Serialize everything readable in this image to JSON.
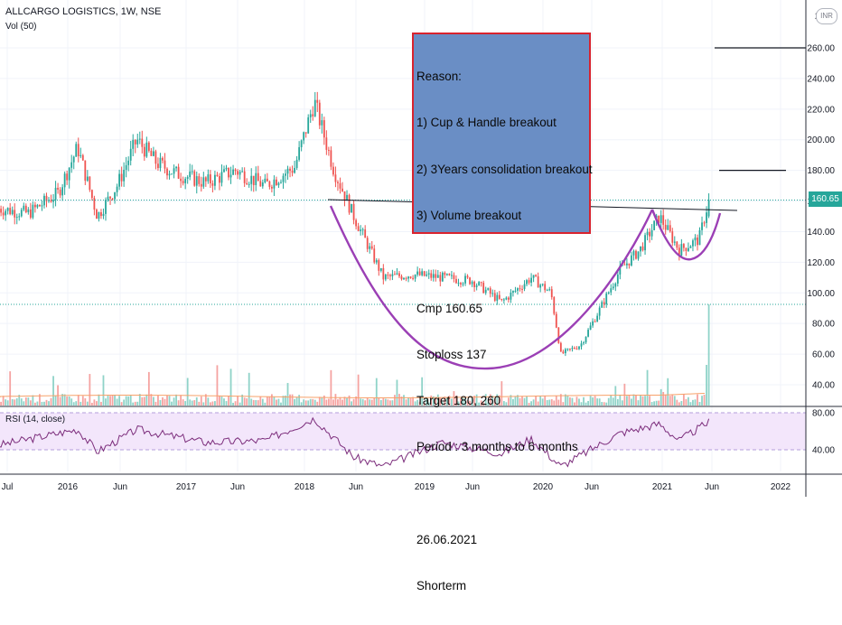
{
  "header": {
    "symbol_line": "ALLCARGO LOGISTICS, 1W, NSE",
    "vol_label": "Vol (50)",
    "rsi_label": "RSI (14, close)",
    "currency_badge": "INR"
  },
  "annotation": {
    "lines": [
      "Reason:",
      "1) Cup & Handle breakout",
      "2) 3Years consolidation breakout",
      "3) Volume breakout",
      "",
      "Cmp 160.65",
      "Stoploss 137",
      "Target 180, 260",
      "Period : 3 months to 6 months",
      "",
      "26.06.2021",
      "Shorterm"
    ]
  },
  "price_tag": "160.65",
  "colors": {
    "up": "#26a69a",
    "down": "#ef5350",
    "cup_pattern": "#9b3fb5",
    "rsi_line": "#7b2c7b",
    "rsi_band": "#f3e6fb",
    "box_fill": "#6a8ec5",
    "box_border": "#d9232e"
  },
  "chart_data": [
    {
      "type": "candlestick",
      "title": "ALLCARGO LOGISTICS, 1W, NSE",
      "y_ticks": [
        "40.00",
        "60.00",
        "80.00",
        "100.00",
        "120.00",
        "140.00",
        "160.00",
        "180.00",
        "200.00",
        "220.00",
        "240.00",
        "260.00"
      ],
      "x_ticks": [
        "Jul",
        "2016",
        "Jun",
        "2017",
        "Jun",
        "2018",
        "Jun",
        "2019",
        "Jun",
        "2020",
        "Jun",
        "2021",
        "Jun",
        "2022"
      ],
      "ylim": [
        35,
        275
      ],
      "last_close": 160.65,
      "key_points": {
        "2016_peak_approx": 200,
        "2018_peak_approx": 228,
        "cup_low_approx": 50,
        "handle_high_approx": 155,
        "handle_low_approx": 120
      },
      "levels": [
        {
          "name": "Cmp",
          "value": 160.65
        },
        {
          "name": "Target 1",
          "value": 180
        },
        {
          "name": "Target 2",
          "value": 260
        },
        {
          "name": "Stoploss",
          "value": 137
        }
      ],
      "close_path": [
        [
          "2015-06",
          155
        ],
        [
          "2015-09",
          152
        ],
        [
          "2015-12",
          165
        ],
        [
          "2016-02",
          195
        ],
        [
          "2016-04",
          150
        ],
        [
          "2016-06",
          170
        ],
        [
          "2016-08",
          200
        ],
        [
          "2016-10",
          185
        ],
        [
          "2016-12",
          178
        ],
        [
          "2017-03",
          172
        ],
        [
          "2017-06",
          180
        ],
        [
          "2017-09",
          170
        ],
        [
          "2017-12",
          182
        ],
        [
          "2018-02",
          225
        ],
        [
          "2018-04",
          180
        ],
        [
          "2018-06",
          150
        ],
        [
          "2018-09",
          110
        ],
        [
          "2018-12",
          112
        ],
        [
          "2019-03",
          110
        ],
        [
          "2019-06",
          108
        ],
        [
          "2019-09",
          94
        ],
        [
          "2019-12",
          110
        ],
        [
          "2020-02",
          100
        ],
        [
          "2020-03",
          60
        ],
        [
          "2020-05",
          66
        ],
        [
          "2020-07",
          90
        ],
        [
          "2020-09",
          115
        ],
        [
          "2020-11",
          128
        ],
        [
          "2021-01",
          150
        ],
        [
          "2021-03",
          128
        ],
        [
          "2021-05",
          135
        ],
        [
          "2021-06",
          160.65
        ]
      ]
    },
    {
      "type": "bar",
      "title": "Vol (50)",
      "note": "weekly volume with 50-period moving average; volume spike on breakout week"
    },
    {
      "type": "line",
      "title": "RSI (14, close)",
      "y_ticks": [
        "40.00",
        "80.00"
      ],
      "ylim": [
        15,
        85
      ],
      "rsi_path": [
        [
          "2015-06",
          45
        ],
        [
          "2016-02",
          62
        ],
        [
          "2016-04",
          38
        ],
        [
          "2016-08",
          62
        ],
        [
          "2017-03",
          48
        ],
        [
          "2017-09",
          50
        ],
        [
          "2018-02",
          74
        ],
        [
          "2018-06",
          32
        ],
        [
          "2018-09",
          22
        ],
        [
          "2019-03",
          48
        ],
        [
          "2019-09",
          36
        ],
        [
          "2019-12",
          52
        ],
        [
          "2020-03",
          22
        ],
        [
          "2020-09",
          58
        ],
        [
          "2021-01",
          68
        ],
        [
          "2021-03",
          50
        ],
        [
          "2021-06",
          70
        ]
      ]
    }
  ]
}
